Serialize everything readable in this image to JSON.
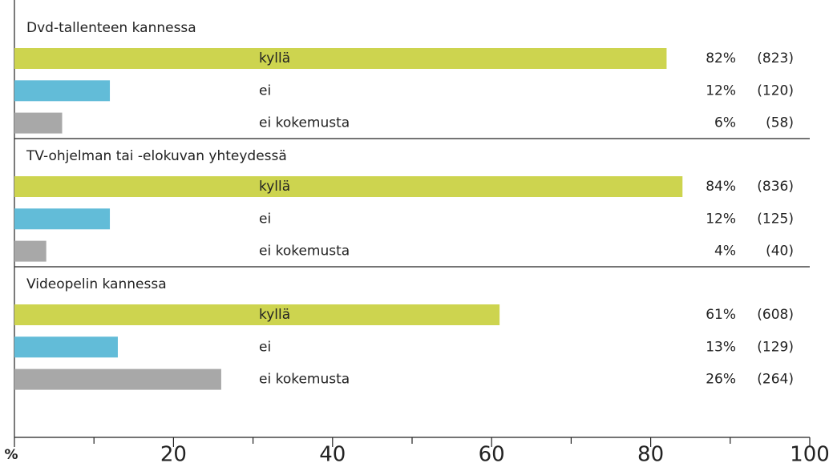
{
  "chart_data": {
    "type": "bar",
    "orientation": "horizontal",
    "groups": [
      "Dvd-tallenteen kannessa",
      "TV-ohjelman tai -elokuvan yhteydessä",
      "Videopelin kannessa"
    ],
    "series": [
      {
        "name": "kyllä",
        "color": "#cdd44f",
        "values": [
          82,
          84,
          61
        ],
        "value_labels": [
          "82%",
          "84%",
          "61%"
        ],
        "count_labels": [
          "(823)",
          "(836)",
          "(608)"
        ]
      },
      {
        "name": "ei",
        "color": "#62bcd8",
        "values": [
          12,
          12,
          13
        ],
        "value_labels": [
          "12%",
          "12%",
          "13%"
        ],
        "count_labels": [
          "(120)",
          "(125)",
          "(129)"
        ]
      },
      {
        "name": "ei kokemusta",
        "color": "#a8a8a8",
        "values": [
          6,
          4,
          26
        ],
        "value_labels": [
          "6%",
          "4%",
          "26%"
        ],
        "count_labels": [
          "(58)",
          "(40)",
          "(264)"
        ]
      }
    ],
    "xlim": [
      0,
      100
    ],
    "xticks": [
      {
        "value": 0,
        "label": "%"
      },
      20,
      40,
      60,
      80,
      100
    ],
    "xminor_ticks": [
      10,
      30,
      50,
      70,
      90
    ]
  }
}
